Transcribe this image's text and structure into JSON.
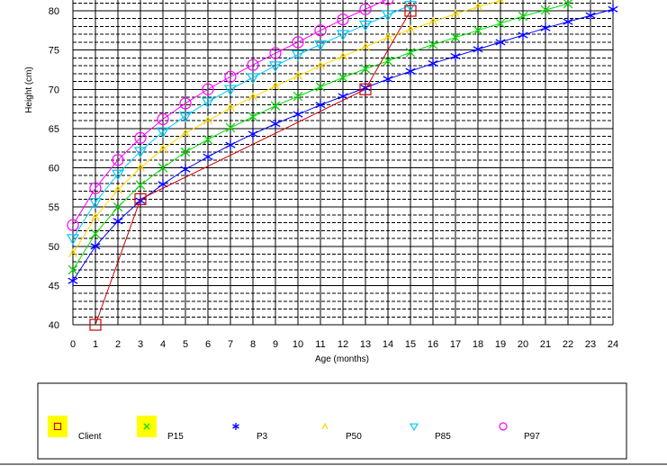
{
  "chart_data": {
    "type": "line",
    "xlabel": "Age (months)",
    "ylabel": "Height (cm)",
    "xlim": [
      0,
      24
    ],
    "ylim": [
      40,
      81
    ],
    "x_ticks": [
      0,
      1,
      2,
      3,
      4,
      5,
      6,
      7,
      8,
      9,
      10,
      11,
      12,
      13,
      14,
      15,
      16,
      17,
      18,
      19,
      20,
      21,
      22,
      23,
      24
    ],
    "y_ticks": [
      40,
      45,
      50,
      55,
      60,
      65,
      70,
      75,
      80
    ],
    "grid": true,
    "legend_position": "bottom",
    "series": [
      {
        "name": "P97",
        "color": "#ff00ff",
        "marker": "circle",
        "x": [
          0,
          1,
          2,
          3,
          4,
          5,
          6,
          7,
          8,
          9,
          10,
          11,
          12,
          13,
          14
        ],
        "y": [
          52.7,
          57.4,
          61.0,
          63.8,
          66.2,
          68.2,
          70.0,
          71.6,
          73.1,
          74.6,
          76.0,
          77.5,
          78.9,
          80.2,
          81.5
        ]
      },
      {
        "name": "P85",
        "color": "#00c8ff",
        "marker": "triangle-down",
        "x": [
          0,
          1,
          2,
          3,
          4,
          5,
          6,
          7,
          8,
          9,
          10,
          11,
          12,
          13,
          14,
          15
        ],
        "y": [
          51.0,
          55.6,
          59.2,
          62.1,
          64.6,
          66.6,
          68.4,
          70.0,
          71.5,
          73.0,
          74.4,
          75.7,
          77.0,
          78.2,
          79.5,
          80.7
        ]
      },
      {
        "name": "P50",
        "color": "#ffd700",
        "marker": "caret",
        "x": [
          0,
          1,
          2,
          3,
          4,
          5,
          6,
          7,
          8,
          9,
          10,
          11,
          12,
          13,
          14,
          15,
          16,
          17,
          18,
          19
        ],
        "y": [
          49.1,
          53.7,
          57.2,
          60.0,
          62.4,
          64.4,
          66.0,
          67.6,
          69.0,
          70.4,
          71.7,
          73.0,
          74.2,
          75.4,
          76.6,
          77.6,
          78.6,
          79.6,
          80.5,
          81.3
        ]
      },
      {
        "name": "P15",
        "color": "#00dd00",
        "marker": "x",
        "x": [
          0,
          1,
          2,
          3,
          4,
          5,
          6,
          7,
          8,
          9,
          10,
          11,
          12,
          13,
          14,
          15,
          16,
          17,
          18,
          19,
          20,
          21,
          22
        ],
        "y": [
          47.0,
          51.6,
          55.0,
          57.8,
          60.0,
          62.0,
          63.6,
          65.1,
          66.5,
          67.9,
          69.1,
          70.3,
          71.5,
          72.6,
          73.6,
          74.7,
          75.7,
          76.6,
          77.5,
          78.4,
          79.3,
          80.1,
          80.9
        ]
      },
      {
        "name": "P3",
        "color": "#0000ff",
        "marker": "asterisk",
        "x": [
          0,
          1,
          2,
          3,
          4,
          5,
          6,
          7,
          8,
          9,
          10,
          11,
          12,
          13,
          14,
          15,
          16,
          17,
          18,
          19,
          20,
          21,
          22,
          23,
          24
        ],
        "y": [
          45.6,
          50.0,
          53.2,
          55.8,
          57.9,
          59.8,
          61.4,
          62.9,
          64.3,
          65.6,
          66.8,
          68.0,
          69.1,
          70.2,
          71.3,
          72.3,
          73.3,
          74.2,
          75.1,
          76.0,
          76.9,
          77.8,
          78.6,
          79.4,
          80.2
        ]
      },
      {
        "name": "Client",
        "color": "#cc0000",
        "marker": "square",
        "x": [
          1,
          3,
          13,
          15
        ],
        "y": [
          40.0,
          56.0,
          70.0,
          80.0
        ]
      }
    ]
  },
  "legend": {
    "items": [
      {
        "name": "Client",
        "marker": "square",
        "color": "#cc0000",
        "highlight": "#ffff00"
      },
      {
        "name": "P15",
        "marker": "x",
        "color": "#00dd00",
        "highlight": "#ffff00"
      },
      {
        "name": "P3",
        "marker": "asterisk",
        "color": "#0000ff"
      },
      {
        "name": "P50",
        "marker": "caret",
        "color": "#ffd700"
      },
      {
        "name": "P85",
        "marker": "triangle-down",
        "color": "#00c8ff"
      },
      {
        "name": "P97",
        "marker": "circle",
        "color": "#ff00ff"
      }
    ]
  }
}
